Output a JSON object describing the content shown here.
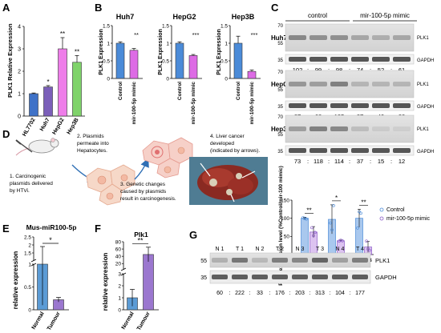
{
  "panel_letters": [
    "A",
    "B",
    "C",
    "D",
    "E",
    "F",
    "G"
  ],
  "colors": {
    "hl7702": "#3f72c8",
    "huh7": "#7b5fb9",
    "hepg2": "#ee7de9",
    "hep3b": "#7fd36a",
    "control": "#4b8bd8",
    "mimic": "#dd6be5",
    "normal": "#5b9bd5",
    "tumour": "#9b77cf"
  },
  "chart_data": [
    {
      "id": "A",
      "type": "bar",
      "ylabel": "PLK1 Relative Expression",
      "ylim": [
        0,
        4
      ],
      "yticks": [
        0,
        1,
        2,
        3,
        4
      ],
      "categories": [
        "HL7702",
        "Huh7",
        "HepG2",
        "Hep3B"
      ],
      "values": [
        1.0,
        1.3,
        3.0,
        2.4
      ],
      "errors": [
        0.03,
        0.06,
        0.5,
        0.3
      ],
      "significance": [
        "",
        "*",
        "**",
        "**"
      ]
    },
    {
      "id": "B1",
      "type": "bar",
      "title": "Huh7",
      "ylabel": "PLK1 Expression",
      "ylim": [
        0,
        1.5
      ],
      "yticks": [
        0.0,
        0.5,
        1.0,
        1.5
      ],
      "categories": [
        "Control",
        "mir-100-5p mimic"
      ],
      "values": [
        1.0,
        0.8
      ],
      "errors": [
        0.04,
        0.05
      ],
      "significance": "**"
    },
    {
      "id": "B2",
      "type": "bar",
      "title": "HepG2",
      "ylabel": "PLK1 Expression",
      "ylim": [
        0,
        1.5
      ],
      "yticks": [
        0.0,
        0.5,
        1.0,
        1.5
      ],
      "categories": [
        "Control",
        "mir-100-5p mimic"
      ],
      "values": [
        1.0,
        0.65
      ],
      "errors": [
        0.04,
        0.03
      ],
      "significance": "***"
    },
    {
      "id": "B3",
      "type": "bar",
      "title": "Hep3B",
      "ylabel": "PLK1 Expression",
      "ylim": [
        0,
        1.5
      ],
      "yticks": [
        0.0,
        0.5,
        1.0,
        1.5
      ],
      "categories": [
        "Control",
        "mir-100-5p mimic"
      ],
      "values": [
        1.0,
        0.2
      ],
      "errors": [
        0.2,
        0.04
      ],
      "significance": "***"
    },
    {
      "id": "C-bar",
      "type": "bar",
      "ylabel": "PLK1 expression level (%Control/mir-100 mimic)",
      "ylim": [
        0,
        150
      ],
      "yticks": [
        0,
        50,
        100,
        150
      ],
      "categories": [
        "Huh7",
        "HepG2",
        "Hep3B"
      ],
      "series": [
        {
          "name": "Control",
          "values": [
            100,
            97,
            100
          ],
          "errors": [
            3,
            40,
            25
          ],
          "points": [
            [
              102,
              99,
              98
            ],
            [
              87,
              68,
              135
            ],
            [
              73,
              118,
              114
            ]
          ]
        },
        {
          "name": "mir-100-5p mimic",
          "values": [
            62,
            38,
            21
          ],
          "errors": [
            15,
            2,
            15
          ],
          "points": [
            [
              74,
              52,
              61
            ],
            [
              37,
              40,
              38
            ],
            [
              37,
              15,
              12
            ]
          ]
        }
      ],
      "significance": [
        "**",
        "*",
        "**"
      ],
      "legend": "right"
    },
    {
      "id": "E",
      "type": "bar",
      "title": "Mus-miR100-5p",
      "ylabel": "relative expression",
      "ylim": [
        0,
        2.5
      ],
      "yticks": [
        0.0,
        0.5,
        1.0,
        1.5,
        2.0,
        2.5
      ],
      "axis_break": true,
      "categories": [
        "Normal",
        "Tumour"
      ],
      "values": [
        1.0,
        0.22
      ],
      "errors": [
        0.9,
        0.05
      ],
      "significance": "*"
    },
    {
      "id": "F",
      "type": "bar",
      "title": "Plk1",
      "ylabel": "relative expression",
      "ylim": [
        0,
        80
      ],
      "yticks": [
        0,
        1,
        2,
        3,
        20,
        40,
        60,
        80
      ],
      "axis_break": true,
      "categories": [
        "Normal",
        "Tumour"
      ],
      "values": [
        1.0,
        45
      ],
      "errors": [
        0.7,
        20
      ],
      "significance": "**"
    }
  ],
  "western_c": {
    "header": {
      "control": "control",
      "mimic": "mir-100-5p mimic"
    },
    "blots": [
      {
        "cell": "Huh7",
        "markers": [
          "70",
          "55",
          "35"
        ],
        "bands": [
          "PLK1",
          "GAPDH"
        ],
        "quant": [
          "102",
          "99",
          "98",
          "74",
          "52",
          "61"
        ]
      },
      {
        "cell": "HepG2",
        "markers": [
          "70",
          "55",
          "35"
        ],
        "bands": [
          "PLK1",
          "GAPDH"
        ],
        "quant": [
          "87",
          "68",
          "135",
          "37",
          "40",
          "38"
        ]
      },
      {
        "cell": "Hep3B",
        "markers": [
          "70",
          "55",
          "35"
        ],
        "bands": [
          "PLK1",
          "GAPDH"
        ],
        "quant": [
          "73",
          "118",
          "114",
          "37",
          "15",
          "12"
        ]
      }
    ]
  },
  "schematic_d": {
    "step1": [
      "1. Carcinogenic",
      "plasmids delivered",
      "by HTVi."
    ],
    "step2": [
      "2. Plasmids",
      "permeate into",
      "Hepatocytes."
    ],
    "step3": [
      "3. Genetic changes",
      "caused by plasmids",
      "result in carcinogenesis."
    ],
    "step4": [
      "4. Liver cancer",
      "developed",
      "(indicated by arrows)."
    ]
  },
  "western_g": {
    "lanes": [
      "N 1",
      "T 1",
      "N 2",
      "T 2",
      "N 3",
      "T 3",
      "N 4",
      "T 4"
    ],
    "markers": [
      "55",
      "35"
    ],
    "bands": [
      "PLK1",
      "GAPDH"
    ],
    "quant": [
      "60",
      "222",
      "33",
      "176",
      "203",
      "313",
      "104",
      "177"
    ]
  }
}
